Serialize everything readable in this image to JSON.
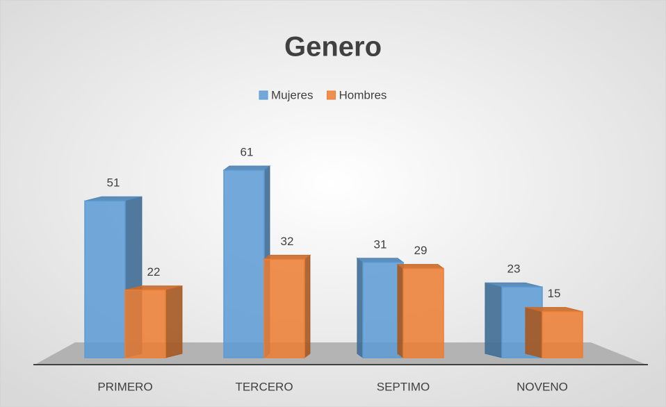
{
  "chart_data": {
    "type": "bar3d",
    "title": "Genero",
    "categories": [
      "PRIMERO",
      "TERCERO",
      "SEPTIMO",
      "NOVENO"
    ],
    "series": [
      {
        "name": "Mujeres",
        "color": "#5b9bd5",
        "values": [
          51,
          61,
          31,
          23
        ]
      },
      {
        "name": "Hombres",
        "color": "#ed7d31",
        "values": [
          22,
          32,
          29,
          15
        ]
      }
    ],
    "legend": "top"
  }
}
